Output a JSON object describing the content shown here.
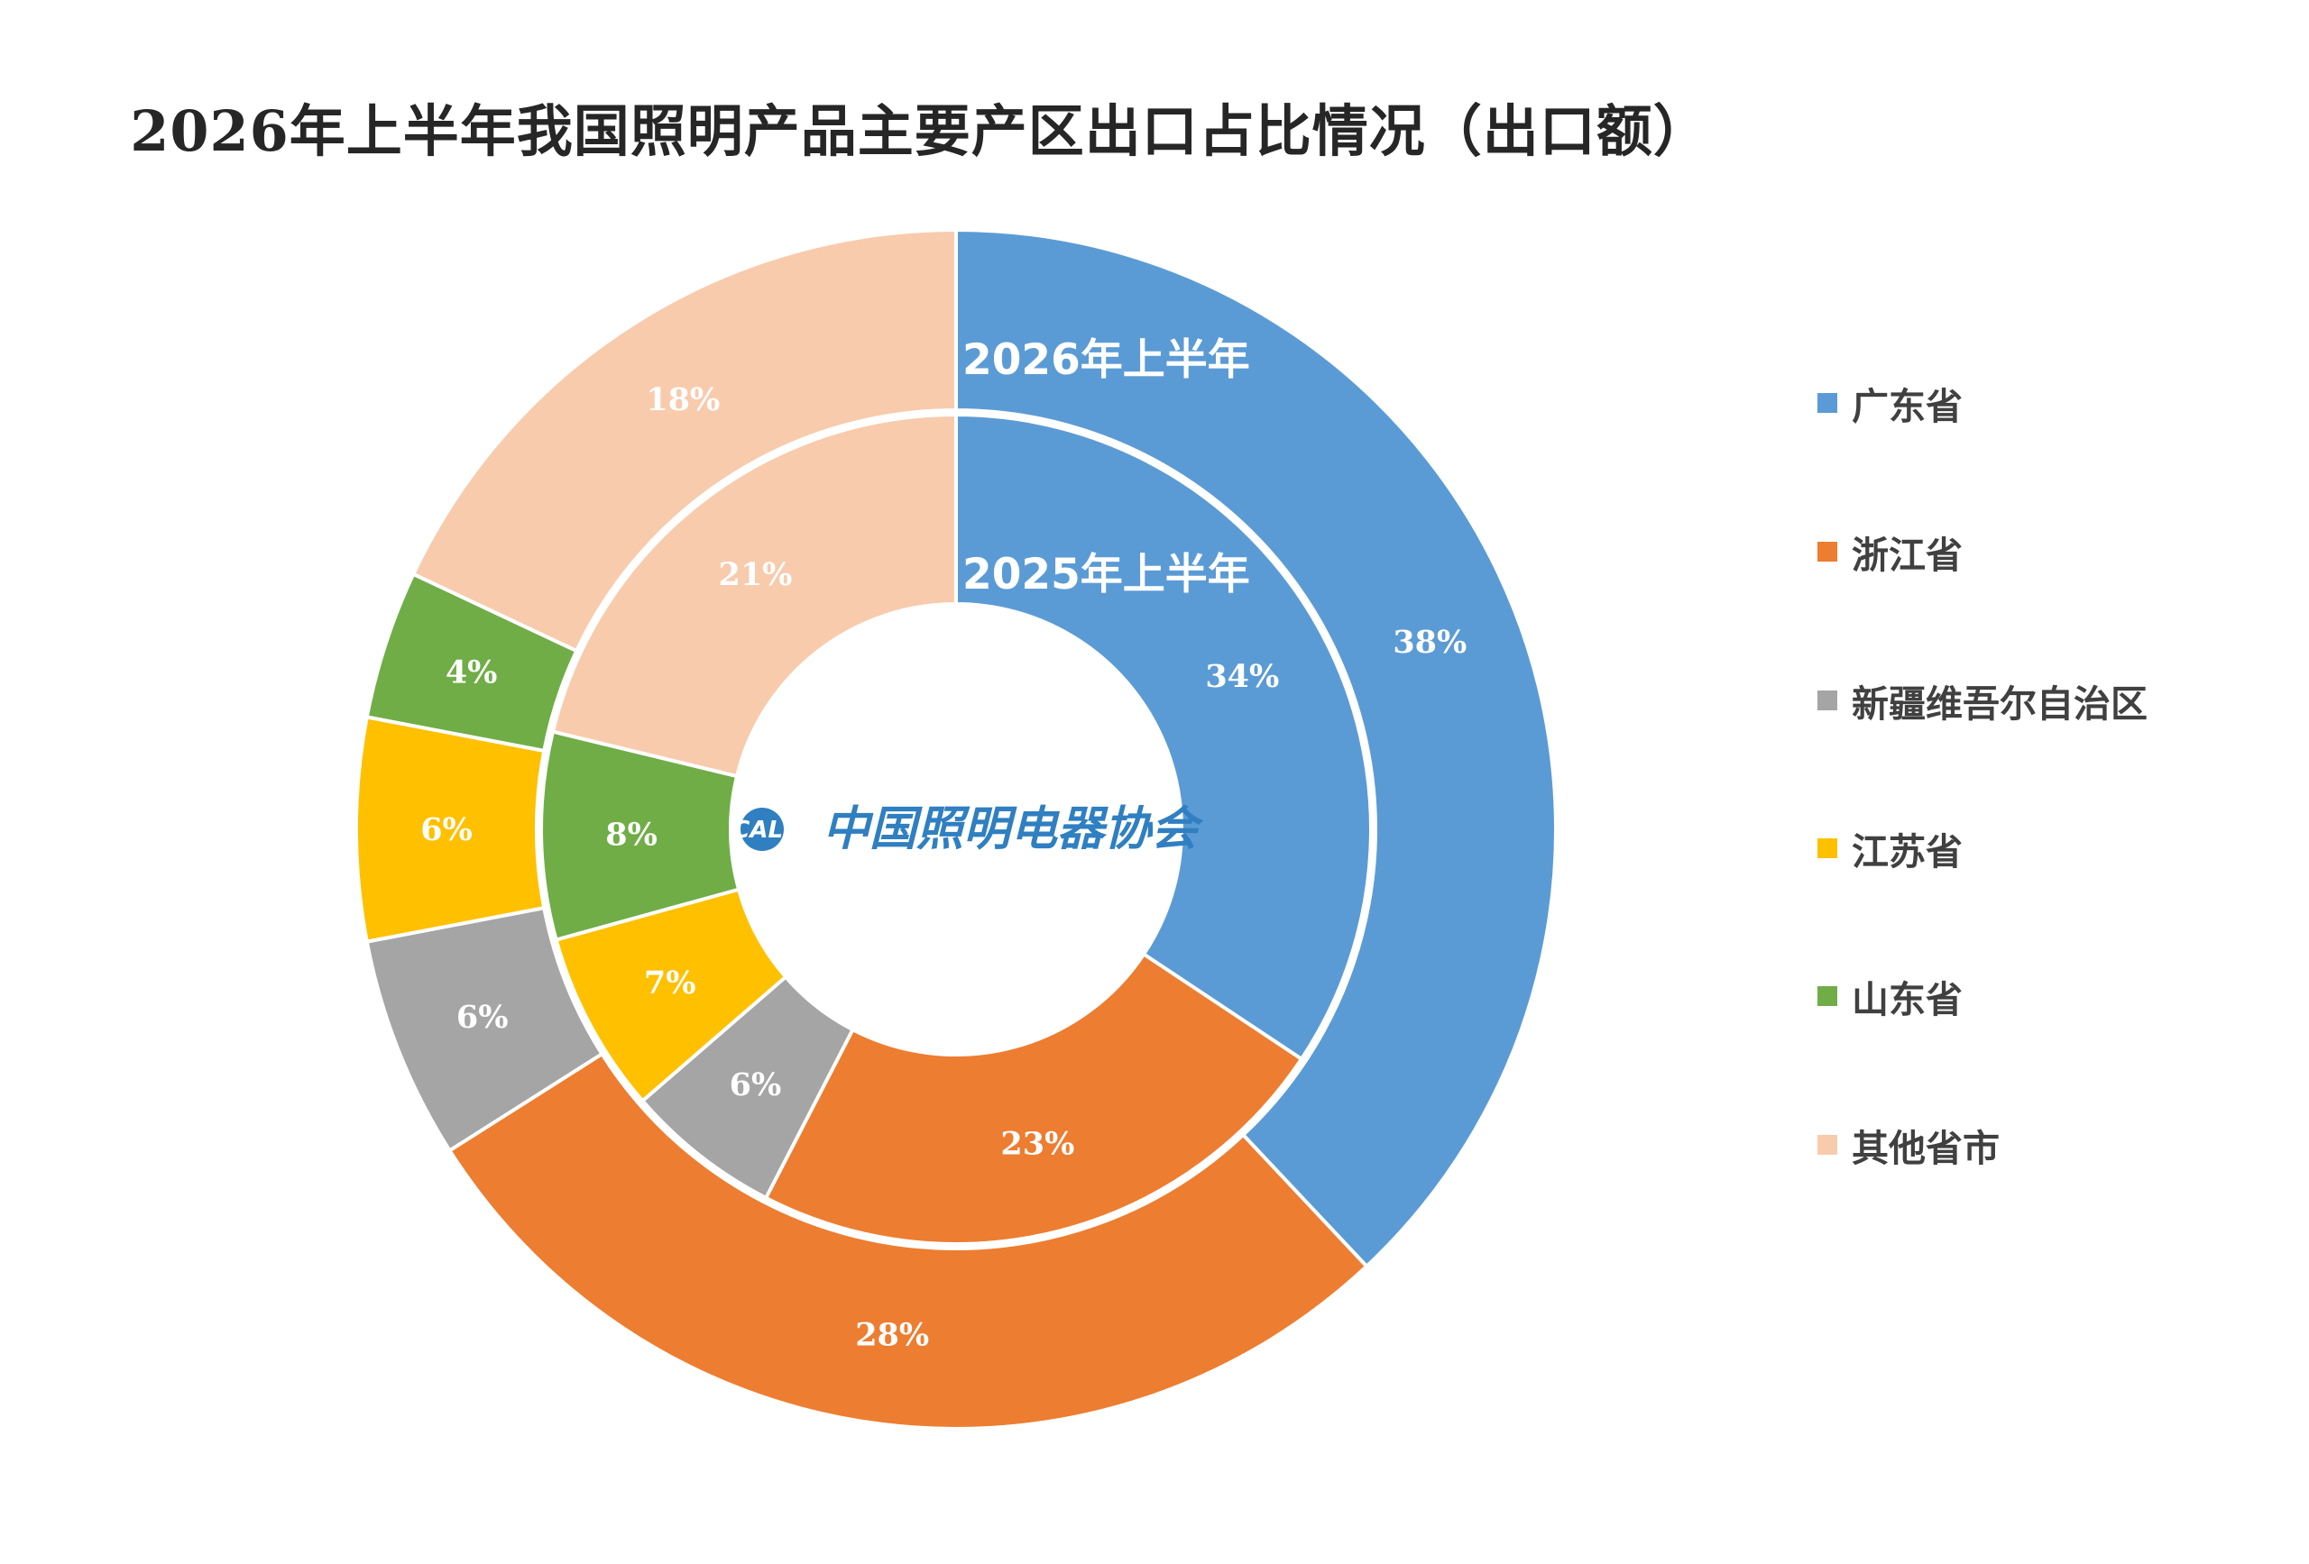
{
  "chart_data": {
    "type": "pie",
    "subtype": "nested-donut",
    "title": "2026年上半年我国照明产品主要产区出口占比情况（出口额）",
    "categories": [
      "广东省",
      "浙江省",
      "新疆维吾尔自治区",
      "江苏省",
      "山东省",
      "其他省市"
    ],
    "colors": [
      "#5b9bd5",
      "#ed7d31",
      "#a5a5a5",
      "#ffc000",
      "#70ad47",
      "#f8cbad"
    ],
    "series": [
      {
        "name": "2026年上半年",
        "ring": "outer",
        "values": [
          38,
          28,
          6,
          6,
          4,
          18
        ],
        "labels": [
          "38%",
          "28%",
          "6%",
          "6%",
          "4%",
          "18%"
        ]
      },
      {
        "name": "2025年上半年",
        "ring": "inner",
        "values": [
          34,
          23,
          6,
          7,
          8,
          21
        ],
        "labels": [
          "34%",
          "23%",
          "6%",
          "7%",
          "8%",
          "21%"
        ]
      }
    ],
    "legend": "right"
  },
  "logo": {
    "mark": "CALI",
    "text": "中国照明电器协会"
  }
}
